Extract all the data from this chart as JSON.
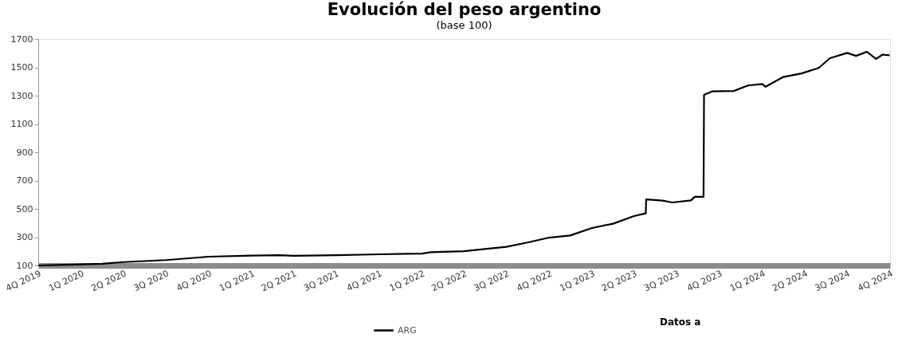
{
  "chart_data": {
    "type": "line",
    "title": "Evolución del peso argentino",
    "subtitle": "(base 100)",
    "x": [
      "2019-10-01",
      "2019-11-15",
      "2020-01-01",
      "2020-02-15",
      "2020-04-01",
      "2020-07-01",
      "2020-10-01",
      "2021-01-01",
      "2021-03-01",
      "2021-04-01",
      "2021-07-01",
      "2021-10-01",
      "2022-01-01",
      "2022-01-20",
      "2022-04-01",
      "2022-07-01",
      "2022-08-15",
      "2022-10-01",
      "2022-11-15",
      "2023-01-01",
      "2023-02-15",
      "2023-04-01",
      "2023-04-26",
      "2023-04-27",
      "2023-06-01",
      "2023-06-22",
      "2023-08-01",
      "2023-08-09",
      "2023-08-28",
      "2023-08-29",
      "2023-09-15",
      "2023-11-01",
      "2023-12-01",
      "2024-01-01",
      "2024-01-08",
      "2024-02-15",
      "2024-03-25",
      "2024-05-01",
      "2024-05-25",
      "2024-07-01",
      "2024-07-20",
      "2024-08-12",
      "2024-09-01",
      "2024-09-15",
      "2024-09-30"
    ],
    "series": [
      {
        "name": "ARG",
        "color": "#000000",
        "values": [
          100,
          104,
          108,
          112,
          124,
          138,
          162,
          170,
          172,
          168,
          173,
          179,
          184,
          194,
          201,
          232,
          262,
          297,
          312,
          365,
          395,
          449,
          468,
          567,
          558,
          545,
          560,
          585,
          585,
          1305,
          1330,
          1333,
          1372,
          1382,
          1363,
          1432,
          1457,
          1496,
          1565,
          1602,
          1581,
          1610,
          1560,
          1590,
          1585
        ]
      }
    ],
    "xlim": [
      "2019-10-01",
      "2024-10-01"
    ],
    "xticks": [
      {
        "value": "2019-10-01",
        "label": "4Q 2019"
      },
      {
        "value": "2020-01-01",
        "label": "1Q 2020"
      },
      {
        "value": "2020-04-01",
        "label": "2Q 2020"
      },
      {
        "value": "2020-07-01",
        "label": "3Q 2020"
      },
      {
        "value": "2020-10-01",
        "label": "4Q 2020"
      },
      {
        "value": "2021-01-01",
        "label": "1Q 2021"
      },
      {
        "value": "2021-04-01",
        "label": "2Q 2021"
      },
      {
        "value": "2021-07-01",
        "label": "3Q 2021"
      },
      {
        "value": "2021-10-01",
        "label": "4Q 2021"
      },
      {
        "value": "2022-01-01",
        "label": "1Q 2022"
      },
      {
        "value": "2022-04-01",
        "label": "2Q 2022"
      },
      {
        "value": "2022-07-01",
        "label": "3Q 2022"
      },
      {
        "value": "2022-10-01",
        "label": "4Q 2022"
      },
      {
        "value": "2023-01-01",
        "label": "1Q 2023"
      },
      {
        "value": "2023-04-01",
        "label": "2Q 2023"
      },
      {
        "value": "2023-07-01",
        "label": "3Q 2023"
      },
      {
        "value": "2023-10-01",
        "label": "4Q 2023"
      },
      {
        "value": "2024-01-01",
        "label": "1Q 2024"
      },
      {
        "value": "2024-04-01",
        "label": "2Q 2024"
      },
      {
        "value": "2024-07-01",
        "label": "3Q 2024"
      },
      {
        "value": "2024-10-01",
        "label": "4Q 2024"
      }
    ],
    "ylim": [
      100,
      1700
    ],
    "yticks": [
      100,
      300,
      500,
      700,
      900,
      1100,
      1300,
      1500,
      1700
    ],
    "grid": false,
    "legend": "bottom",
    "marker": "none",
    "line_style": "solid",
    "annotations": [
      "Datos a"
    ]
  }
}
